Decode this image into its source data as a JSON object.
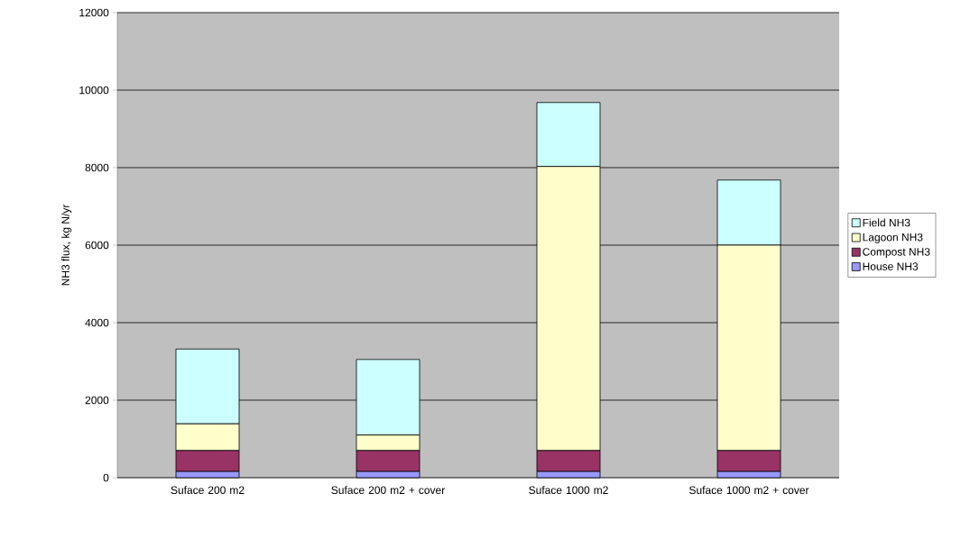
{
  "chart_data": {
    "type": "bar",
    "stacked": true,
    "ylabel": "NH3 flux, kg N/yr",
    "categories": [
      "Suface 200 m2",
      "Suface 200 m2 + cover",
      "Suface 1000 m2",
      "Suface 1000 m2 + cover"
    ],
    "series": [
      {
        "name": "House NH3",
        "color": "#9999ff",
        "values": [
          160,
          160,
          160,
          160
        ]
      },
      {
        "name": "Compost NH3",
        "color": "#993366",
        "values": [
          540,
          540,
          540,
          540
        ]
      },
      {
        "name": "Lagoon NH3",
        "color": "#ffffcc",
        "values": [
          690,
          400,
          7330,
          5300
        ]
      },
      {
        "name": "Field NH3",
        "color": "#ccffff",
        "values": [
          1930,
          1950,
          1650,
          1680
        ]
      }
    ],
    "ylim": [
      0,
      12000
    ],
    "yticks": [
      0,
      2000,
      4000,
      6000,
      8000,
      10000,
      12000
    ],
    "grid": "y",
    "legend": "right"
  }
}
